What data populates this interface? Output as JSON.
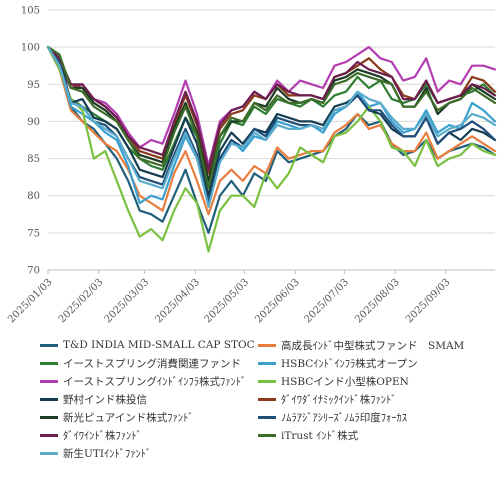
{
  "chart_data": {
    "type": "line",
    "ylim": [
      70,
      105
    ],
    "y_ticks": [
      70,
      75,
      80,
      85,
      90,
      95,
      100,
      105
    ],
    "x_tick_labels": [
      "2025/01/03",
      "2025/02/03",
      "2025/03/03",
      "2025/04/03",
      "2025/05/03",
      "2025/06/03",
      "2025/07/03",
      "2025/08/03",
      "2025/09/03"
    ],
    "x_tick_positions": [
      0,
      4.43,
      8.43,
      12.86,
      17.14,
      21.57,
      25.86,
      30.29,
      34.71
    ],
    "grid": "horizontal",
    "legend_position": "bottom",
    "series": [
      {
        "name": "T&D INDIA MID-SMALL CAP STOC",
        "color": "#1f5f7a",
        "values": [
          100,
          98,
          92,
          90,
          89,
          87,
          85,
          82,
          78,
          77.5,
          76.5,
          80,
          83.5,
          79,
          75,
          80,
          82,
          80,
          83,
          82,
          86,
          84.5,
          85,
          85.5,
          86,
          88,
          89,
          91,
          89.5,
          90,
          87,
          85.5,
          86,
          87.5,
          85,
          86,
          86.5,
          87,
          86.5,
          85.5
        ]
      },
      {
        "name": "高成長ｲﾝﾄﾞ中型株式ファンド　SMAM",
        "color": "#e87d3e",
        "values": [
          100,
          97,
          91.5,
          90,
          88.5,
          87,
          86,
          83.5,
          80,
          79,
          78,
          83,
          86,
          82,
          77.5,
          82,
          83.5,
          82,
          84,
          83,
          86.5,
          85,
          85.5,
          86,
          86,
          88.5,
          89.5,
          91,
          89,
          89.5,
          87,
          86,
          86,
          88.5,
          85,
          86,
          87,
          88,
          87,
          86
        ]
      },
      {
        "name": "イーストスプリング消費関連ファンド",
        "color": "#2f7d32",
        "values": [
          100,
          97,
          93,
          92,
          91,
          90,
          89,
          86.5,
          85,
          84,
          83.5,
          87,
          90.5,
          88,
          81,
          87,
          90,
          89.5,
          92,
          91,
          93,
          92.5,
          92,
          93,
          92,
          93.5,
          94,
          96,
          94.5,
          95.5,
          93,
          92.5,
          93,
          95,
          92.5,
          93,
          93.5,
          94,
          95,
          93.5
        ]
      },
      {
        "name": "HSBCｲﾝﾄﾞｲﾝﾌﾗ株式オープン",
        "color": "#3ba0d0",
        "values": [
          100,
          97.5,
          92,
          91,
          90,
          88.5,
          87.5,
          84,
          79,
          80,
          79.5,
          84,
          88,
          85,
          79.5,
          85,
          87.5,
          86,
          88,
          87.5,
          90,
          89.5,
          89,
          89.5,
          88.5,
          91,
          92,
          94,
          92,
          92.5,
          90,
          88.5,
          89,
          91.5,
          88.5,
          89.5,
          89,
          92.5,
          91.5,
          90
        ]
      },
      {
        "name": "イーストスプリングｲﾝﾄﾞｲﾝﾌﾗ株式ﾌｧﾝﾄﾞ",
        "color": "#b23cb0",
        "values": [
          100,
          97.5,
          94.5,
          95,
          93,
          92.5,
          91,
          88.5,
          86.5,
          87.5,
          87,
          91,
          95.5,
          91,
          84,
          90,
          91.5,
          92,
          94,
          93,
          95.5,
          94,
          95.5,
          95,
          94.5,
          97.5,
          98,
          99,
          100,
          98.5,
          98,
          95.5,
          96,
          98.5,
          94,
          95.5,
          95,
          97.5,
          97.5,
          97
        ]
      },
      {
        "name": "HSBCインド小型株OPEN",
        "color": "#7ac142",
        "values": [
          100,
          97,
          93,
          91.5,
          85,
          86,
          82,
          78,
          74.5,
          75.5,
          74,
          78,
          81,
          79,
          72.5,
          78,
          80,
          80,
          78.5,
          83,
          81,
          83,
          86.5,
          85.5,
          84.5,
          88,
          88.5,
          90,
          92,
          90,
          86.5,
          86,
          84,
          87.5,
          84,
          85,
          85.5,
          87,
          86,
          85.5
        ]
      },
      {
        "name": "野村インド株投信",
        "color": "#153d52",
        "values": [
          100,
          98.5,
          92.5,
          93,
          90.5,
          90,
          89,
          86.5,
          83.5,
          83,
          82.5,
          86.5,
          90.5,
          87,
          80,
          86,
          88.5,
          87,
          89,
          88.5,
          91,
          90.5,
          90,
          90,
          89.5,
          92,
          92.5,
          93.5,
          91.5,
          91,
          89,
          88,
          88,
          90.5,
          87,
          88.5,
          87.5,
          89,
          88.5,
          87.5
        ]
      },
      {
        "name": "ﾀﾞｲﾜﾀﾞｲﾅﾐｯｸｲﾝﾄﾞ株ﾌｧﾝﾄﾞ",
        "color": "#8b3a1a",
        "values": [
          100,
          98.5,
          95,
          94.5,
          93,
          92,
          90.5,
          88,
          86,
          85.5,
          85,
          89.5,
          93.5,
          89.5,
          83,
          89,
          91,
          91.5,
          93.5,
          93,
          95,
          93.5,
          93.5,
          93.5,
          93,
          96,
          96.5,
          97.5,
          98.5,
          97,
          96,
          93.5,
          93,
          95.5,
          92.5,
          93,
          93.5,
          96,
          95.5,
          94
        ]
      },
      {
        "name": "新光ピュアインド株式ﾌｧﾝﾄﾞ",
        "color": "#1c3a24",
        "values": [
          100,
          98.5,
          94.5,
          94.5,
          92.5,
          91.5,
          90,
          87.5,
          85.5,
          85,
          84.5,
          89,
          92.5,
          88.5,
          82,
          88,
          90,
          90,
          92.5,
          92,
          94.5,
          93,
          92.5,
          93,
          92.5,
          95.5,
          96,
          97,
          96.5,
          96,
          95,
          92,
          92,
          94.5,
          91,
          92.5,
          93,
          95,
          94,
          93
        ]
      },
      {
        "name": "ﾉﾑﾗｱｼﾞｱｼﾘｰｽﾞﾉﾑﾗ印度ﾌｫｰｶｽ",
        "color": "#1f4e79",
        "values": [
          100,
          98,
          92.5,
          92,
          90,
          89.5,
          88,
          85,
          82.5,
          82,
          81.5,
          85.5,
          89,
          85.5,
          79,
          85,
          87.5,
          86.5,
          89,
          88,
          90.5,
          90,
          89.5,
          89.5,
          89,
          91.5,
          92,
          93.5,
          91.5,
          91.5,
          89.5,
          88,
          88,
          90.5,
          87,
          88.5,
          89,
          90,
          89,
          87.5
        ]
      },
      {
        "name": "ﾀﾞｲﾜｲﾝﾄﾞ株ﾌｧﾝﾄﾞ",
        "color": "#6b1f4f",
        "values": [
          100,
          98.5,
          95,
          95,
          93,
          92,
          90.5,
          88,
          86.5,
          86,
          85.5,
          90,
          94,
          90,
          83.5,
          89.5,
          91.5,
          92,
          94,
          93,
          95,
          94,
          93.5,
          93.5,
          93,
          96,
          96.5,
          98,
          97,
          96.5,
          96,
          93,
          93,
          95.5,
          92.5,
          93,
          93.5,
          95,
          94.5,
          93.5
        ]
      },
      {
        "name": "iTrust ｲﾝﾄﾞ株式",
        "color": "#3c6e2a",
        "values": [
          100,
          99,
          94.5,
          94,
          92,
          91,
          90,
          87.5,
          85,
          84.5,
          84,
          88.5,
          92,
          88,
          81,
          88,
          90.5,
          90,
          92.5,
          91.5,
          93.5,
          92.5,
          92.5,
          93,
          92.5,
          95,
          95.5,
          96.5,
          96,
          95.5,
          95,
          92,
          92,
          94,
          91.5,
          92.5,
          93,
          94.5,
          93.5,
          92.5
        ]
      },
      {
        "name": "新生UTIｲﾝﾄﾞﾌｧﾝﾄﾞ",
        "color": "#5aaccc",
        "values": [
          100,
          97.5,
          92.5,
          92,
          90,
          89,
          88,
          85,
          82,
          81.5,
          81,
          85,
          88.5,
          85,
          78.5,
          84.5,
          87,
          86.5,
          88.5,
          87.5,
          89.5,
          89,
          89,
          89.5,
          89,
          91.5,
          92,
          94,
          93,
          92.5,
          90.5,
          89,
          89,
          91,
          88,
          89,
          89.5,
          91,
          90.5,
          89.5
        ]
      }
    ]
  }
}
